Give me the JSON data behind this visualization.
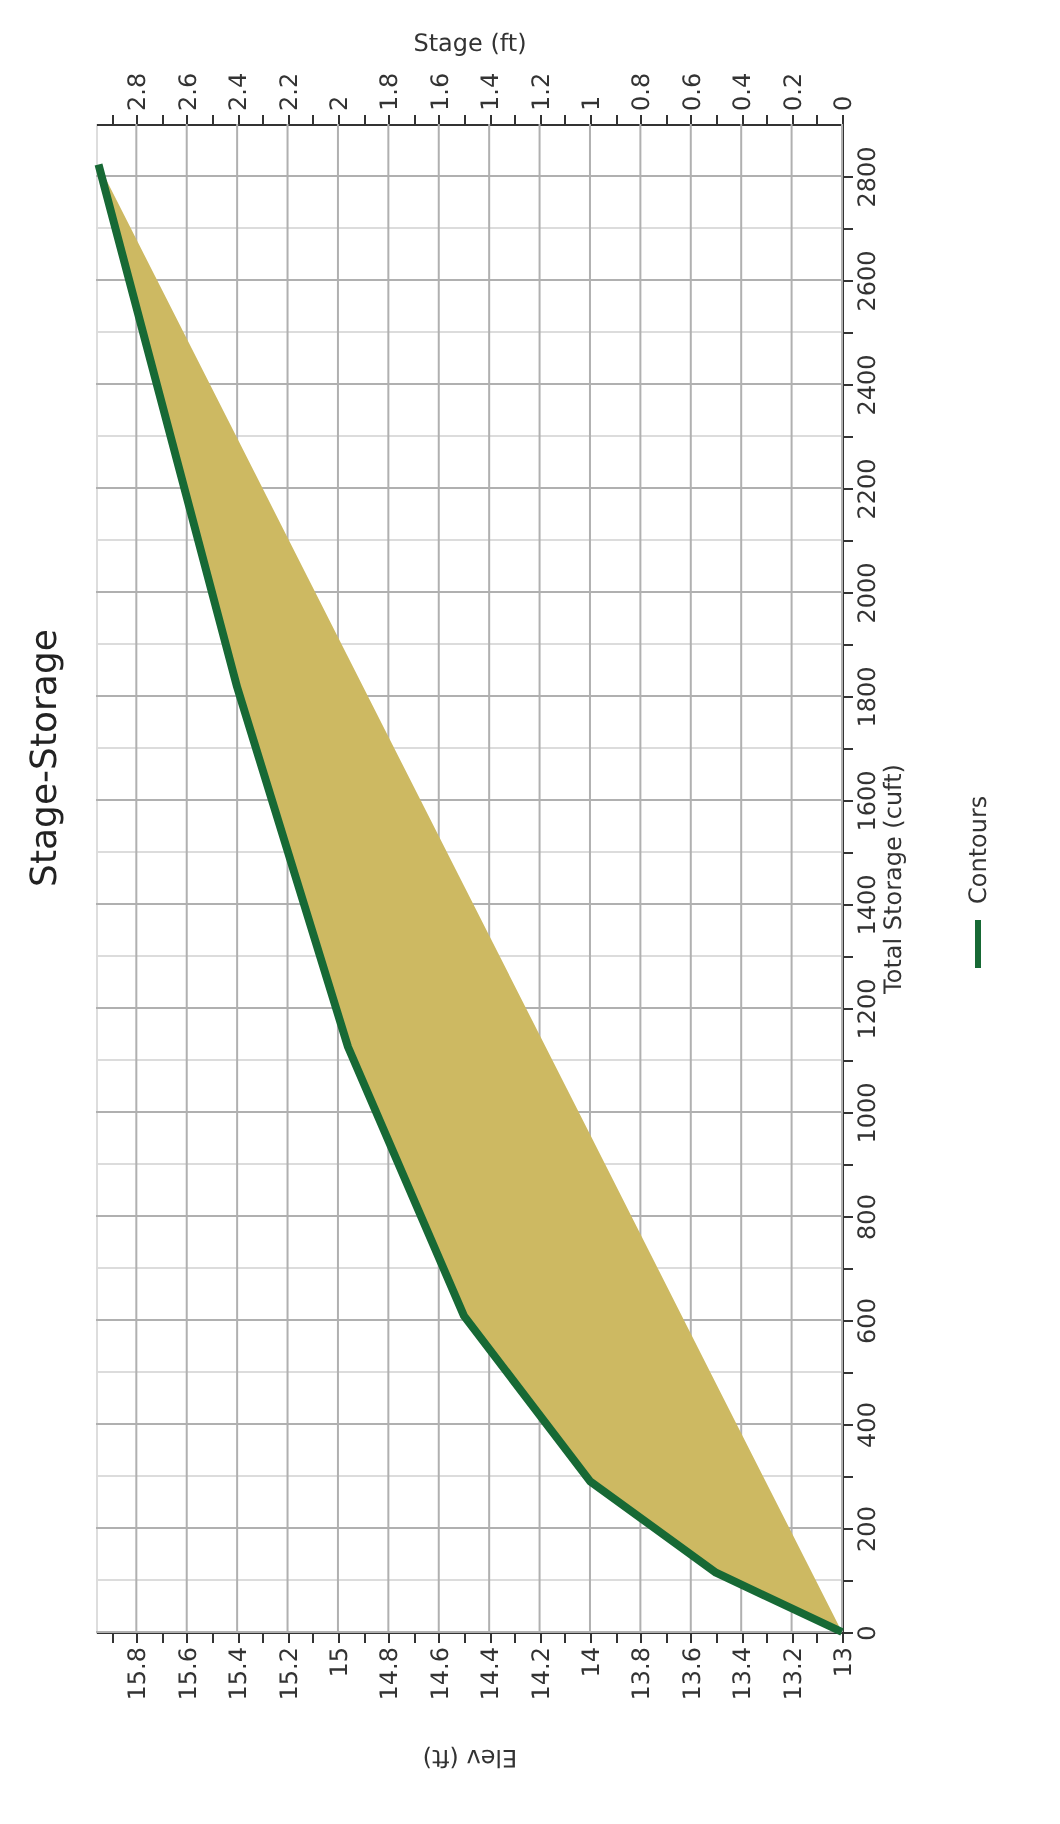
{
  "chart_data": {
    "type": "line",
    "title": "Stage-Storage",
    "xlabel": "Elev (ft)",
    "ylabel": "Total Storage (cuft)",
    "x2label": "Stage (ft)",
    "x": [
      13,
      13.5,
      14.0,
      14.5,
      14.96,
      15.4,
      15.95
    ],
    "series": [
      {
        "name": "Contours",
        "color": "#176935",
        "values": [
          0,
          114,
          290,
          608,
          1125,
          1817,
          2822
        ],
        "lower": [
          0,
          114,
          290,
          608,
          1125,
          1817,
          2822
        ],
        "upper": [
          0,
          478,
          957,
          1435,
          1875,
          2296,
          2822
        ]
      }
    ],
    "xlim": [
      15.96,
      13
    ],
    "xticks": [
      13,
      {
        "value": 13.1,
        "label": null
      },
      13.2,
      {
        "value": 13.3,
        "label": null
      },
      13.4,
      {
        "value": 13.5,
        "label": null
      },
      13.6,
      {
        "value": 13.7,
        "label": null
      },
      13.8,
      {
        "value": 13.9,
        "label": null
      },
      14,
      {
        "value": 14.1,
        "label": null
      },
      14.2,
      {
        "value": 14.3,
        "label": null
      },
      14.4,
      {
        "value": 14.5,
        "label": null
      },
      14.6,
      {
        "value": 14.7,
        "label": null
      },
      14.8,
      {
        "value": 14.9,
        "label": null
      },
      15,
      {
        "value": 15.1,
        "label": null
      },
      15.2,
      {
        "value": 15.3,
        "label": null
      },
      15.4,
      {
        "value": 15.5,
        "label": null
      },
      15.6,
      {
        "value": 15.7,
        "label": null
      },
      15.8,
      {
        "value": 15.9,
        "label": null
      }
    ],
    "ylim": [
      0,
      2900
    ],
    "yticks": [
      0,
      {
        "value": 100,
        "label": null
      },
      200,
      {
        "value": 300,
        "label": null
      },
      400,
      {
        "value": 500,
        "label": null
      },
      600,
      {
        "value": 700,
        "label": null
      },
      800,
      {
        "value": 900,
        "label": null
      },
      1000,
      {
        "value": 1100,
        "label": null
      },
      1200,
      {
        "value": 1300,
        "label": null
      },
      1400,
      {
        "value": 1500,
        "label": null
      },
      1600,
      {
        "value": 1700,
        "label": null
      },
      1800,
      {
        "value": 1900,
        "label": null
      },
      2000,
      {
        "value": 2100,
        "label": null
      },
      2200,
      {
        "value": 2300,
        "label": null
      },
      2400,
      {
        "value": 2500,
        "label": null
      },
      2600,
      {
        "value": 2700,
        "label": null
      },
      2800
    ],
    "x2lim": [
      2.96,
      0
    ],
    "x2ticks": [
      0,
      {
        "value": 0.1,
        "label": null
      },
      0.2,
      {
        "value": 0.3,
        "label": null
      },
      0.4,
      {
        "value": 0.5,
        "label": null
      },
      0.6,
      {
        "value": 0.7,
        "label": null
      },
      0.8,
      {
        "value": 0.9,
        "label": null
      },
      1,
      {
        "value": 1.1,
        "label": null
      },
      1.2,
      {
        "value": 1.3,
        "label": null
      },
      1.4,
      {
        "value": 1.5,
        "label": null
      },
      1.6,
      {
        "value": 1.7,
        "label": null
      },
      1.8,
      {
        "value": 1.9,
        "label": null
      },
      2,
      {
        "value": 2.1,
        "label": null
      },
      2.2,
      {
        "value": 2.3,
        "label": null
      },
      2.4,
      {
        "value": 2.5,
        "label": null
      },
      2.6,
      {
        "value": 2.7,
        "label": null
      },
      2.8,
      {
        "value": 2.9,
        "label": null
      }
    ],
    "grid": true,
    "legend": "right",
    "marker": "none",
    "line_style": "solid"
  }
}
